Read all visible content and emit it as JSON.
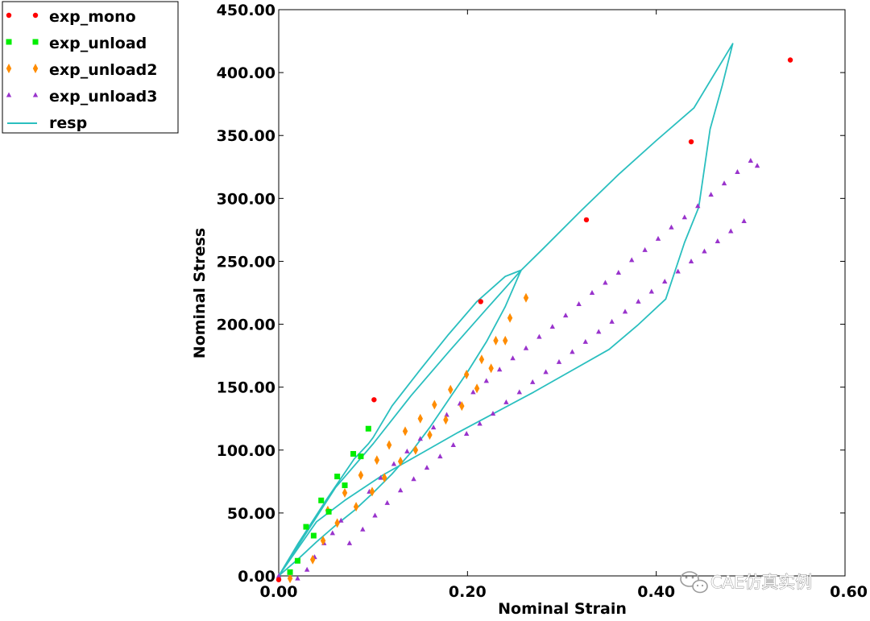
{
  "chart_data": {
    "type": "scatter",
    "title": "",
    "xlabel": "Nominal Strain",
    "ylabel": "Nominal Stress",
    "xlim": [
      0,
      0.6
    ],
    "ylim": [
      0,
      450
    ],
    "x_ticks": [
      0,
      0.2,
      0.4,
      0.6
    ],
    "y_ticks": [
      0,
      50,
      100,
      150,
      200,
      250,
      300,
      350,
      400,
      450
    ],
    "x_tick_labels": [
      "0.00",
      "0.20",
      "0.40",
      "0.60"
    ],
    "y_tick_labels": [
      "0.00",
      "50.00",
      "100.00",
      "150.00",
      "200.00",
      "250.00",
      "300.00",
      "350.00",
      "400.00",
      "450.00"
    ],
    "grid": false,
    "legend_position": "top-left (outside plot)",
    "series": [
      {
        "name": "exp_mono",
        "marker": "circle",
        "color": "#ff0000",
        "x": [
          0.0,
          0.101,
          0.214,
          0.326,
          0.437,
          0.542
        ],
        "y": [
          -3,
          140,
          218,
          283,
          345,
          410
        ]
      },
      {
        "name": "exp_unload",
        "marker": "square",
        "color": "#00ee00",
        "x": [
          0.012,
          0.02,
          0.029,
          0.037,
          0.045,
          0.053,
          0.062,
          0.07,
          0.079,
          0.087,
          0.095
        ],
        "y": [
          3,
          12,
          39,
          32,
          60,
          51,
          79,
          72,
          97,
          95,
          117
        ]
      },
      {
        "name": "exp_unload2",
        "marker": "diamond",
        "color": "#ff8c00",
        "x": [
          0.012,
          0.036,
          0.047,
          0.052,
          0.062,
          0.07,
          0.082,
          0.087,
          0.099,
          0.104,
          0.112,
          0.117,
          0.129,
          0.134,
          0.145,
          0.15,
          0.16,
          0.165,
          0.177,
          0.182,
          0.194,
          0.199,
          0.21,
          0.215,
          0.225,
          0.23,
          0.24,
          0.245,
          0.262
        ],
        "y": [
          -2,
          13,
          28,
          52,
          42,
          66,
          55,
          80,
          67,
          92,
          78,
          104,
          91,
          115,
          100,
          125,
          112,
          136,
          124,
          148,
          135,
          160,
          149,
          172,
          165,
          187,
          187,
          205,
          221
        ]
      },
      {
        "name": "exp_unload3",
        "marker": "triangle",
        "color": "#9933cc",
        "x": [
          0.0,
          0.02,
          0.03,
          0.038,
          0.048,
          0.057,
          0.066,
          0.075,
          0.082,
          0.089,
          0.096,
          0.102,
          0.108,
          0.115,
          0.122,
          0.129,
          0.136,
          0.143,
          0.15,
          0.157,
          0.164,
          0.171,
          0.178,
          0.185,
          0.192,
          0.199,
          0.206,
          0.213,
          0.22,
          0.227,
          0.234,
          0.241,
          0.248,
          0.255,
          0.262,
          0.269,
          0.276,
          0.283,
          0.29,
          0.297,
          0.304,
          0.311,
          0.318,
          0.325,
          0.332,
          0.339,
          0.346,
          0.353,
          0.36,
          0.367,
          0.374,
          0.381,
          0.388,
          0.395,
          0.402,
          0.409,
          0.416,
          0.423,
          0.43,
          0.437,
          0.444,
          0.451,
          0.458,
          0.465,
          0.472,
          0.479,
          0.486,
          0.493,
          0.5,
          0.507
        ],
        "y": [
          0,
          -2,
          5,
          15,
          26,
          34,
          44,
          26,
          56,
          37,
          67,
          48,
          78,
          58,
          89,
          68,
          99,
          77,
          109,
          86,
          118,
          95,
          128,
          104,
          137,
          113,
          146,
          121,
          155,
          129,
          164,
          138,
          173,
          146,
          181,
          154,
          190,
          162,
          198,
          170,
          207,
          178,
          216,
          186,
          225,
          194,
          233,
          202,
          241,
          210,
          251,
          218,
          259,
          226,
          268,
          234,
          277,
          242,
          285,
          250,
          294,
          258,
          303,
          266,
          312,
          274,
          321,
          282,
          330,
          326
        ]
      },
      {
        "name": "resp",
        "marker": "line",
        "color": "#2abfbf",
        "x": [
          0.0,
          0.02,
          0.05,
          0.08,
          0.095,
          0.1,
          0.12,
          0.15,
          0.18,
          0.21,
          0.24,
          0.257,
          0.255,
          0.24,
          0.22,
          0.2,
          0.18,
          0.16,
          0.14,
          0.12,
          0.1,
          0.08,
          0.06,
          0.04,
          0.02,
          0.0,
          0.03,
          0.06,
          0.1,
          0.14,
          0.18,
          0.22,
          0.257,
          0.28,
          0.32,
          0.36,
          0.4,
          0.44,
          0.481,
          0.47,
          0.457,
          0.445,
          0.43,
          0.41,
          0.38,
          0.35,
          0.31,
          0.27,
          0.23,
          0.19,
          0.15,
          0.11,
          0.07,
          0.04,
          0.0
        ],
        "y": [
          0,
          25,
          60,
          93,
          105,
          110,
          135,
          164,
          192,
          218,
          238,
          243,
          240,
          214,
          186,
          162,
          140,
          118,
          98,
          81,
          66,
          52,
          40,
          27,
          13,
          0,
          35,
          70,
          105,
          143,
          178,
          212,
          243,
          260,
          290,
          319,
          346,
          372,
          423,
          390,
          355,
          293,
          265,
          220,
          199,
          180,
          163,
          146,
          130,
          114,
          97,
          80,
          60,
          43,
          0
        ]
      }
    ]
  },
  "watermark": {
    "text": "CAE仿真实例",
    "icon": "wechat-icon"
  }
}
